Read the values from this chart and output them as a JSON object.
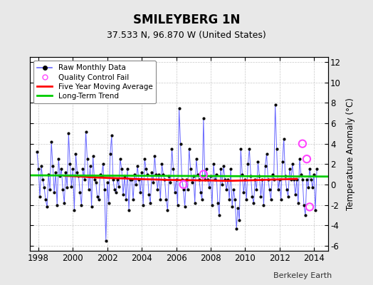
{
  "title": "SMILEYBERG 1N",
  "subtitle": "37.533 N, 96.870 W (United States)",
  "ylabel": "Temperature Anomaly (°C)",
  "credit": "Berkeley Earth",
  "xlim": [
    1997.5,
    2014.83
  ],
  "ylim": [
    -6.5,
    12.5
  ],
  "yticks": [
    -6,
    -4,
    -2,
    0,
    2,
    4,
    6,
    8,
    10,
    12
  ],
  "xticks": [
    1998,
    2000,
    2002,
    2004,
    2006,
    2008,
    2010,
    2012,
    2014
  ],
  "bg_color": "#e8e8e8",
  "plot_bg_color": "#ffffff",
  "raw_line_color": "#6666ff",
  "raw_marker_color": "#000000",
  "ma_color": "#ff0000",
  "trend_color": "#00cc00",
  "qc_color": "#ff44ff",
  "legend_raw_label": "Raw Monthly Data",
  "legend_qc_label": "Quality Control Fail",
  "legend_ma_label": "Five Year Moving Average",
  "legend_trend_label": "Long-Term Trend",
  "raw_data": [
    [
      1997.917,
      3.2
    ],
    [
      1998.0,
      1.5
    ],
    [
      1998.083,
      -1.2
    ],
    [
      1998.167,
      1.8
    ],
    [
      1998.25,
      0.5
    ],
    [
      1998.333,
      -0.3
    ],
    [
      1998.417,
      -1.5
    ],
    [
      1998.5,
      -2.2
    ],
    [
      1998.583,
      1.0
    ],
    [
      1998.667,
      -0.5
    ],
    [
      1998.75,
      4.2
    ],
    [
      1998.833,
      1.8
    ],
    [
      1998.917,
      -0.8
    ],
    [
      1999.0,
      1.2
    ],
    [
      1999.083,
      -2.0
    ],
    [
      1999.167,
      2.5
    ],
    [
      1999.25,
      0.8
    ],
    [
      1999.333,
      1.5
    ],
    [
      1999.417,
      -0.5
    ],
    [
      1999.5,
      -1.8
    ],
    [
      1999.583,
      1.2
    ],
    [
      1999.667,
      -0.3
    ],
    [
      1999.75,
      5.0
    ],
    [
      1999.833,
      2.0
    ],
    [
      1999.917,
      -0.2
    ],
    [
      2000.0,
      1.5
    ],
    [
      2000.083,
      -2.5
    ],
    [
      2000.167,
      3.0
    ],
    [
      2000.25,
      1.2
    ],
    [
      2000.333,
      0.8
    ],
    [
      2000.417,
      -0.8
    ],
    [
      2000.5,
      -2.0
    ],
    [
      2000.583,
      1.5
    ],
    [
      2000.667,
      0.5
    ],
    [
      2000.75,
      5.2
    ],
    [
      2000.833,
      2.5
    ],
    [
      2000.917,
      -0.5
    ],
    [
      2001.0,
      1.8
    ],
    [
      2001.083,
      -2.2
    ],
    [
      2001.167,
      2.8
    ],
    [
      2001.25,
      0.5
    ],
    [
      2001.333,
      0.2
    ],
    [
      2001.417,
      -1.2
    ],
    [
      2001.5,
      -1.5
    ],
    [
      2001.583,
      1.0
    ],
    [
      2001.667,
      0.8
    ],
    [
      2001.75,
      2.0
    ],
    [
      2001.833,
      -0.5
    ],
    [
      2001.917,
      -5.5
    ],
    [
      2002.0,
      0.2
    ],
    [
      2002.083,
      -1.8
    ],
    [
      2002.167,
      3.0
    ],
    [
      2002.25,
      4.8
    ],
    [
      2002.333,
      0.5
    ],
    [
      2002.417,
      -0.5
    ],
    [
      2002.5,
      -0.8
    ],
    [
      2002.583,
      0.5
    ],
    [
      2002.667,
      -0.2
    ],
    [
      2002.75,
      2.5
    ],
    [
      2002.833,
      1.5
    ],
    [
      2002.917,
      -1.0
    ],
    [
      2003.0,
      0.8
    ],
    [
      2003.083,
      -1.5
    ],
    [
      2003.167,
      1.5
    ],
    [
      2003.25,
      -2.5
    ],
    [
      2003.333,
      0.5
    ],
    [
      2003.417,
      0.5
    ],
    [
      2003.5,
      -1.5
    ],
    [
      2003.583,
      1.0
    ],
    [
      2003.667,
      0.0
    ],
    [
      2003.75,
      1.8
    ],
    [
      2003.833,
      0.5
    ],
    [
      2003.917,
      -0.8
    ],
    [
      2004.0,
      1.2
    ],
    [
      2004.083,
      -2.0
    ],
    [
      2004.167,
      2.5
    ],
    [
      2004.25,
      1.5
    ],
    [
      2004.333,
      1.0
    ],
    [
      2004.417,
      -1.0
    ],
    [
      2004.5,
      -1.8
    ],
    [
      2004.583,
      1.2
    ],
    [
      2004.667,
      0.2
    ],
    [
      2004.75,
      2.8
    ],
    [
      2004.833,
      1.0
    ],
    [
      2004.917,
      -0.5
    ],
    [
      2005.0,
      1.0
    ],
    [
      2005.083,
      -1.5
    ],
    [
      2005.167,
      2.0
    ],
    [
      2005.25,
      1.0
    ],
    [
      2005.333,
      0.5
    ],
    [
      2005.417,
      -1.5
    ],
    [
      2005.5,
      -2.5
    ],
    [
      2005.583,
      0.8
    ],
    [
      2005.667,
      0.2
    ],
    [
      2005.75,
      3.5
    ],
    [
      2005.833,
      1.5
    ],
    [
      2005.917,
      -0.8
    ],
    [
      2006.0,
      0.5
    ],
    [
      2006.083,
      -2.0
    ],
    [
      2006.167,
      7.5
    ],
    [
      2006.25,
      4.0
    ],
    [
      2006.333,
      0.5
    ],
    [
      2006.417,
      -0.5
    ],
    [
      2006.5,
      -2.2
    ],
    [
      2006.583,
      0.5
    ],
    [
      2006.667,
      -0.5
    ],
    [
      2006.75,
      3.5
    ],
    [
      2006.833,
      1.5
    ],
    [
      2006.917,
      0.2
    ],
    [
      2007.0,
      0.8
    ],
    [
      2007.083,
      -1.8
    ],
    [
      2007.167,
      2.5
    ],
    [
      2007.25,
      1.0
    ],
    [
      2007.333,
      0.5
    ],
    [
      2007.417,
      -0.8
    ],
    [
      2007.5,
      -1.5
    ],
    [
      2007.583,
      6.5
    ],
    [
      2007.667,
      0.5
    ],
    [
      2007.75,
      1.5
    ],
    [
      2007.833,
      0.5
    ],
    [
      2007.917,
      -0.3
    ],
    [
      2008.0,
      0.8
    ],
    [
      2008.083,
      -2.0
    ],
    [
      2008.167,
      2.0
    ],
    [
      2008.25,
      0.5
    ],
    [
      2008.333,
      1.0
    ],
    [
      2008.417,
      -1.8
    ],
    [
      2008.5,
      -3.0
    ],
    [
      2008.583,
      1.5
    ],
    [
      2008.667,
      0.0
    ],
    [
      2008.75,
      1.8
    ],
    [
      2008.833,
      0.5
    ],
    [
      2008.917,
      -0.5
    ],
    [
      2009.0,
      0.5
    ],
    [
      2009.083,
      -1.5
    ],
    [
      2009.167,
      1.5
    ],
    [
      2009.25,
      -2.2
    ],
    [
      2009.333,
      -0.5
    ],
    [
      2009.417,
      -1.5
    ],
    [
      2009.5,
      -4.3
    ],
    [
      2009.583,
      -2.3
    ],
    [
      2009.667,
      -3.5
    ],
    [
      2009.75,
      3.5
    ],
    [
      2009.833,
      1.0
    ],
    [
      2009.917,
      -0.8
    ],
    [
      2010.0,
      0.5
    ],
    [
      2010.083,
      -1.5
    ],
    [
      2010.167,
      2.0
    ],
    [
      2010.25,
      3.5
    ],
    [
      2010.333,
      0.8
    ],
    [
      2010.417,
      -1.2
    ],
    [
      2010.5,
      -1.8
    ],
    [
      2010.583,
      0.5
    ],
    [
      2010.667,
      -0.5
    ],
    [
      2010.75,
      2.2
    ],
    [
      2010.833,
      0.8
    ],
    [
      2010.917,
      -1.2
    ],
    [
      2011.0,
      0.5
    ],
    [
      2011.083,
      -2.0
    ],
    [
      2011.167,
      1.8
    ],
    [
      2011.25,
      3.0
    ],
    [
      2011.333,
      0.5
    ],
    [
      2011.417,
      -0.5
    ],
    [
      2011.5,
      -1.5
    ],
    [
      2011.583,
      1.0
    ],
    [
      2011.667,
      0.5
    ],
    [
      2011.75,
      7.8
    ],
    [
      2011.833,
      3.5
    ],
    [
      2011.917,
      -0.5
    ],
    [
      2012.0,
      0.5
    ],
    [
      2012.083,
      -1.5
    ],
    [
      2012.167,
      2.2
    ],
    [
      2012.25,
      4.5
    ],
    [
      2012.333,
      0.8
    ],
    [
      2012.417,
      -0.5
    ],
    [
      2012.5,
      -1.2
    ],
    [
      2012.583,
      1.5
    ],
    [
      2012.667,
      0.5
    ],
    [
      2012.75,
      2.0
    ],
    [
      2012.833,
      0.5
    ],
    [
      2012.917,
      -1.0
    ],
    [
      2013.0,
      0.5
    ],
    [
      2013.083,
      -1.8
    ],
    [
      2013.167,
      2.5
    ],
    [
      2013.25,
      1.0
    ],
    [
      2013.333,
      0.5
    ],
    [
      2013.417,
      -2.0
    ],
    [
      2013.5,
      -3.0
    ],
    [
      2013.583,
      0.5
    ],
    [
      2013.667,
      -0.3
    ],
    [
      2013.75,
      1.5
    ],
    [
      2013.833,
      0.5
    ],
    [
      2013.917,
      -0.3
    ],
    [
      2014.0,
      1.0
    ],
    [
      2014.083,
      -2.5
    ],
    [
      2014.167,
      1.5
    ]
  ],
  "qc_points": [
    [
      2006.417,
      0.0
    ],
    [
      2007.583,
      1.0
    ],
    [
      2013.333,
      4.0
    ],
    [
      2013.583,
      2.5
    ],
    [
      2013.75,
      -2.2
    ]
  ],
  "ma_data": [
    [
      1999.5,
      0.85
    ],
    [
      2000.0,
      0.82
    ],
    [
      2000.5,
      0.78
    ],
    [
      2001.0,
      0.72
    ],
    [
      2001.5,
      0.68
    ],
    [
      2002.0,
      0.65
    ],
    [
      2002.5,
      0.62
    ],
    [
      2003.0,
      0.6
    ],
    [
      2003.5,
      0.55
    ],
    [
      2004.0,
      0.52
    ],
    [
      2004.5,
      0.5
    ],
    [
      2005.0,
      0.48
    ],
    [
      2005.5,
      0.45
    ],
    [
      2006.0,
      0.44
    ],
    [
      2006.5,
      0.42
    ],
    [
      2007.0,
      0.42
    ],
    [
      2007.5,
      0.4
    ],
    [
      2008.0,
      0.4
    ],
    [
      2008.5,
      0.38
    ],
    [
      2009.0,
      0.36
    ],
    [
      2009.5,
      0.38
    ],
    [
      2010.0,
      0.4
    ],
    [
      2010.5,
      0.42
    ],
    [
      2011.0,
      0.45
    ],
    [
      2011.5,
      0.48
    ],
    [
      2012.0,
      0.5
    ],
    [
      2012.5,
      0.52
    ],
    [
      2013.0,
      0.55
    ]
  ],
  "trend_x": [
    1997.5,
    2014.83
  ],
  "trend_y": [
    0.9,
    0.78
  ]
}
